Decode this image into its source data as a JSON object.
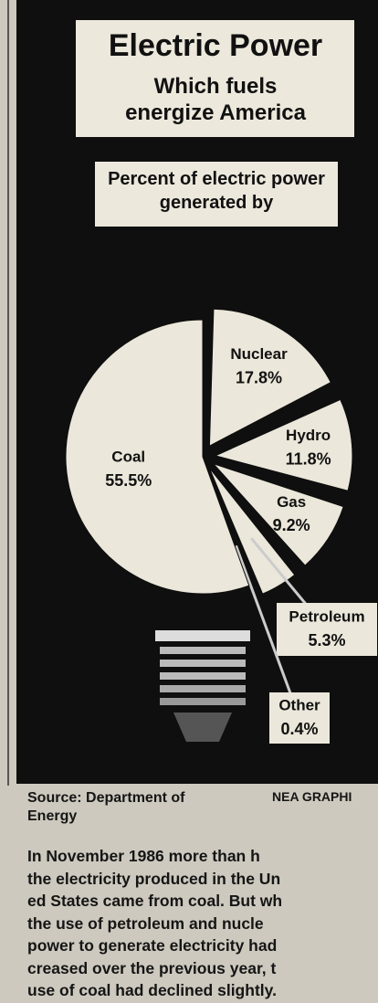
{
  "chart_data": {
    "type": "pie",
    "title": "Electric Power",
    "subtitle": "Which fuels energize America",
    "label": "Percent of electric power generated by",
    "categories": [
      "Nuclear",
      "Hydro",
      "Gas",
      "Petroleum",
      "Other",
      "Coal"
    ],
    "values": [
      17.8,
      11.8,
      9.2,
      5.3,
      0.4,
      55.5
    ],
    "value_labels": [
      "17.8%",
      "11.8%",
      "9.2%",
      "5.3%",
      "0.4%",
      "55.5%"
    ],
    "color": "#ebe7da",
    "source": "Source: Department of Energy",
    "credit": "NEA GRAPHI"
  },
  "article": {
    "lines": [
      "In November 1986 more than h",
      "the electricity produced in the Un",
      "ed States came from coal. But wh",
      "the use of petroleum and nucle",
      "power to generate electricity had",
      "creased over the previous year, t",
      "use of coal had declined slightly."
    ]
  }
}
